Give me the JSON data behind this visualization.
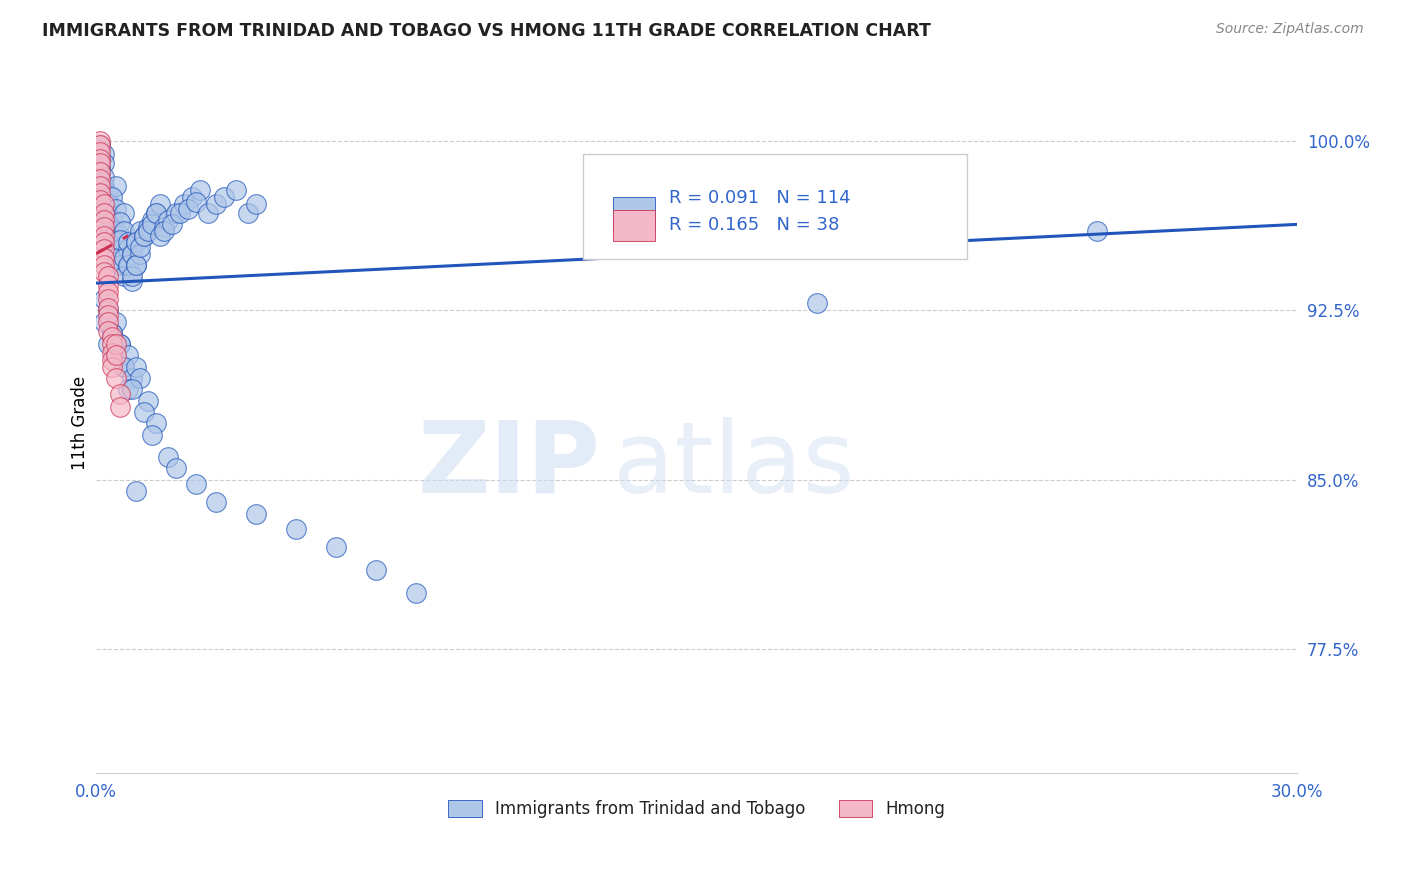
{
  "title": "IMMIGRANTS FROM TRINIDAD AND TOBAGO VS HMONG 11TH GRADE CORRELATION CHART",
  "source": "Source: ZipAtlas.com",
  "ylabel": "11th Grade",
  "xlim": [
    0.0,
    0.3
  ],
  "ylim": [
    0.72,
    1.03
  ],
  "xticks": [
    0.0,
    0.05,
    0.1,
    0.15,
    0.2,
    0.25,
    0.3
  ],
  "xtick_labels": [
    "0.0%",
    "",
    "",
    "",
    "",
    "",
    "30.0%"
  ],
  "yticks": [
    0.775,
    0.85,
    0.925,
    1.0
  ],
  "ytick_labels": [
    "77.5%",
    "85.0%",
    "92.5%",
    "100.0%"
  ],
  "blue_color": "#aec6e8",
  "pink_color": "#f4b8c8",
  "blue_line_color": "#2255bb",
  "pink_line_color": "#cc3355",
  "legend_R_blue": "0.091",
  "legend_N_blue": "114",
  "legend_R_pink": "0.165",
  "legend_N_pink": "38",
  "watermark_zip": "ZIP",
  "watermark_atlas": "atlas",
  "blue_scatter_x": [
    0.001,
    0.001,
    0.002,
    0.001,
    0.002,
    0.001,
    0.001,
    0.002,
    0.001,
    0.002,
    0.002,
    0.003,
    0.002,
    0.003,
    0.002,
    0.003,
    0.003,
    0.004,
    0.003,
    0.004,
    0.003,
    0.004,
    0.005,
    0.004,
    0.005,
    0.004,
    0.005,
    0.006,
    0.005,
    0.006,
    0.005,
    0.006,
    0.007,
    0.006,
    0.007,
    0.006,
    0.008,
    0.007,
    0.008,
    0.007,
    0.009,
    0.008,
    0.009,
    0.008,
    0.01,
    0.009,
    0.01,
    0.009,
    0.011,
    0.01,
    0.011,
    0.01,
    0.012,
    0.011,
    0.013,
    0.012,
    0.014,
    0.013,
    0.015,
    0.014,
    0.016,
    0.015,
    0.017,
    0.016,
    0.018,
    0.017,
    0.02,
    0.019,
    0.022,
    0.021,
    0.024,
    0.023,
    0.026,
    0.025,
    0.028,
    0.03,
    0.032,
    0.035,
    0.038,
    0.04,
    0.002,
    0.003,
    0.002,
    0.004,
    0.003,
    0.005,
    0.004,
    0.006,
    0.005,
    0.007,
    0.006,
    0.008,
    0.007,
    0.009,
    0.008,
    0.01,
    0.011,
    0.009,
    0.013,
    0.012,
    0.015,
    0.014,
    0.018,
    0.02,
    0.025,
    0.03,
    0.04,
    0.05,
    0.06,
    0.07,
    0.08,
    0.01,
    0.25,
    0.18
  ],
  "blue_scatter_y": [
    0.998,
    0.996,
    0.994,
    0.992,
    0.99,
    0.988,
    0.986,
    0.984,
    0.982,
    0.98,
    0.978,
    0.976,
    0.974,
    0.972,
    0.97,
    0.968,
    0.966,
    0.964,
    0.962,
    0.96,
    0.958,
    0.956,
    0.98,
    0.975,
    0.97,
    0.965,
    0.96,
    0.958,
    0.955,
    0.952,
    0.948,
    0.945,
    0.968,
    0.964,
    0.96,
    0.956,
    0.952,
    0.948,
    0.944,
    0.94,
    0.938,
    0.955,
    0.95,
    0.945,
    0.955,
    0.95,
    0.945,
    0.94,
    0.96,
    0.955,
    0.95,
    0.945,
    0.958,
    0.953,
    0.962,
    0.958,
    0.965,
    0.96,
    0.968,
    0.963,
    0.972,
    0.968,
    0.962,
    0.958,
    0.965,
    0.96,
    0.968,
    0.963,
    0.972,
    0.968,
    0.975,
    0.97,
    0.978,
    0.973,
    0.968,
    0.972,
    0.975,
    0.978,
    0.968,
    0.972,
    0.93,
    0.925,
    0.92,
    0.915,
    0.91,
    0.92,
    0.915,
    0.91,
    0.905,
    0.9,
    0.91,
    0.905,
    0.9,
    0.895,
    0.89,
    0.9,
    0.895,
    0.89,
    0.885,
    0.88,
    0.875,
    0.87,
    0.86,
    0.855,
    0.848,
    0.84,
    0.835,
    0.828,
    0.82,
    0.81,
    0.8,
    0.845,
    0.96,
    0.928
  ],
  "pink_scatter_x": [
    0.001,
    0.001,
    0.001,
    0.001,
    0.001,
    0.001,
    0.001,
    0.001,
    0.001,
    0.001,
    0.002,
    0.002,
    0.002,
    0.002,
    0.002,
    0.002,
    0.002,
    0.002,
    0.002,
    0.002,
    0.003,
    0.003,
    0.003,
    0.003,
    0.003,
    0.003,
    0.003,
    0.003,
    0.004,
    0.004,
    0.004,
    0.004,
    0.004,
    0.005,
    0.005,
    0.005,
    0.006,
    0.006
  ],
  "pink_scatter_y": [
    1.0,
    0.998,
    0.995,
    0.992,
    0.99,
    0.986,
    0.983,
    0.98,
    0.977,
    0.974,
    0.972,
    0.968,
    0.965,
    0.962,
    0.958,
    0.955,
    0.952,
    0.948,
    0.945,
    0.942,
    0.94,
    0.936,
    0.933,
    0.93,
    0.926,
    0.923,
    0.92,
    0.916,
    0.913,
    0.91,
    0.906,
    0.903,
    0.9,
    0.91,
    0.905,
    0.895,
    0.888,
    0.882
  ],
  "blue_trendline_x": [
    0.0,
    0.3
  ],
  "blue_trendline_y": [
    0.937,
    0.963
  ],
  "pink_trendline_x": [
    0.0,
    0.008
  ],
  "pink_trendline_y": [
    0.95,
    0.958
  ]
}
